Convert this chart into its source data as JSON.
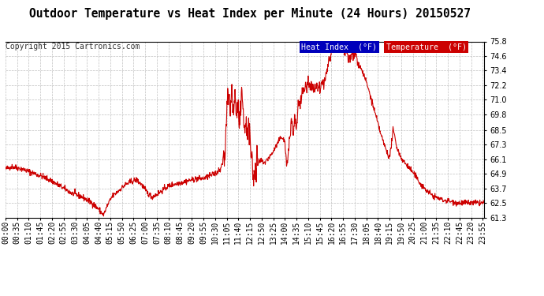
{
  "title": "Outdoor Temperature vs Heat Index per Minute (24 Hours) 20150527",
  "copyright": "Copyright 2015 Cartronics.com",
  "legend_label1": "Heat Index  (°F)",
  "legend_label2": "Temperature  (°F)",
  "legend_color1": "#0000bb",
  "legend_color2": "#cc0000",
  "line_color": "#cc0000",
  "ylim": [
    61.3,
    75.8
  ],
  "yticks": [
    61.3,
    62.5,
    63.7,
    64.9,
    66.1,
    67.3,
    68.5,
    69.8,
    71.0,
    72.2,
    73.4,
    74.6,
    75.8
  ],
  "background_color": "#ffffff",
  "grid_color": "#c0c0c0",
  "title_fontsize": 10.5,
  "tick_fontsize": 7.0,
  "copyright_fontsize": 7.0,
  "tick_interval_min": 35
}
